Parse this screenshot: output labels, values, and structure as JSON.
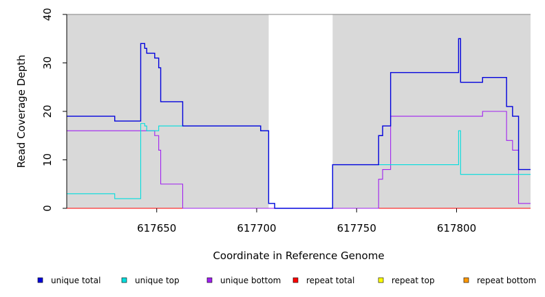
{
  "chart_data": {
    "type": "line",
    "xlabel": "Coordinate in Reference Genome",
    "ylabel": "Read Coverage Depth",
    "xlim": [
      617605,
      617837
    ],
    "ylim": [
      0,
      40
    ],
    "x_ticks": [
      617650,
      617700,
      617750,
      617800
    ],
    "x_tick_labels": [
      "617650",
      "617700",
      "617750",
      "617800"
    ],
    "y_ticks": [
      0,
      10,
      20,
      30,
      40
    ],
    "y_tick_labels": [
      "0",
      "10",
      "20",
      "30",
      "40"
    ],
    "shaded_regions": [
      [
        617605,
        617706
      ],
      [
        617738,
        617837
      ]
    ],
    "shade_color": "#d9d9d9",
    "legend_position": "bottom",
    "series": [
      {
        "name": "unique total",
        "color": "#0000dd",
        "steps": [
          [
            617605,
            19
          ],
          [
            617629,
            18
          ],
          [
            617642,
            34
          ],
          [
            617644,
            33
          ],
          [
            617645,
            32
          ],
          [
            617649,
            31
          ],
          [
            617651,
            29
          ],
          [
            617652,
            22
          ],
          [
            617663,
            17
          ],
          [
            617702,
            16
          ],
          [
            617706,
            1
          ],
          [
            617709,
            0
          ],
          [
            617738,
            9
          ],
          [
            617761,
            15
          ],
          [
            617763,
            17
          ],
          [
            617767,
            28
          ],
          [
            617801,
            35
          ],
          [
            617802,
            26
          ],
          [
            617813,
            27
          ],
          [
            617825,
            21
          ],
          [
            617828,
            19
          ],
          [
            617831,
            8
          ],
          [
            617837,
            8
          ]
        ]
      },
      {
        "name": "unique top",
        "color": "#00dddd",
        "steps": [
          [
            617605,
            3
          ],
          [
            617629,
            2
          ],
          [
            617642,
            17.5
          ],
          [
            617644,
            17
          ],
          [
            617645,
            16
          ],
          [
            617651,
            17
          ],
          [
            617663,
            17
          ],
          [
            617702,
            16
          ],
          [
            617706,
            1
          ],
          [
            617709,
            0
          ],
          [
            617738,
            9
          ],
          [
            617767,
            9
          ],
          [
            617801,
            16
          ],
          [
            617802,
            7
          ],
          [
            617837,
            7
          ]
        ]
      },
      {
        "name": "unique bottom",
        "color": "#a020f0",
        "steps": [
          [
            617605,
            16
          ],
          [
            617649,
            15
          ],
          [
            617651,
            12
          ],
          [
            617652,
            5
          ],
          [
            617663,
            0
          ],
          [
            617761,
            6
          ],
          [
            617763,
            8
          ],
          [
            617767,
            19
          ],
          [
            617813,
            20
          ],
          [
            617825,
            14
          ],
          [
            617828,
            12
          ],
          [
            617831,
            1
          ],
          [
            617837,
            1
          ]
        ]
      },
      {
        "name": "repeat total",
        "color": "#ff0000",
        "steps": [
          [
            617605,
            0
          ],
          [
            617837,
            0
          ]
        ]
      },
      {
        "name": "repeat top",
        "color": "#ffff00",
        "steps": [
          [
            617605,
            0
          ],
          [
            617837,
            0
          ]
        ]
      },
      {
        "name": "repeat bottom",
        "color": "#ff9900",
        "steps": [
          [
            617605,
            0
          ],
          [
            617837,
            0
          ]
        ]
      }
    ]
  }
}
